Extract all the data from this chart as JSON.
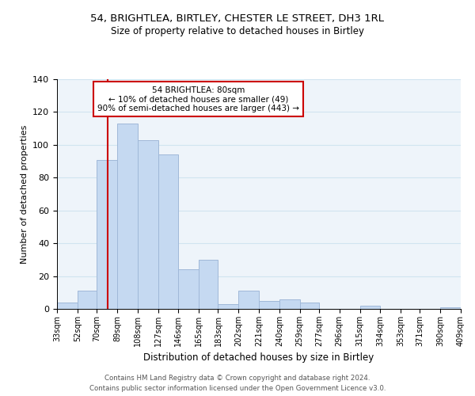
{
  "title_line1": "54, BRIGHTLEA, BIRTLEY, CHESTER LE STREET, DH3 1RL",
  "title_line2": "Size of property relative to detached houses in Birtley",
  "xlabel": "Distribution of detached houses by size in Birtley",
  "ylabel": "Number of detached properties",
  "bar_edges": [
    33,
    52,
    70,
    89,
    108,
    127,
    146,
    165,
    183,
    202,
    221,
    240,
    259,
    277,
    296,
    315,
    334,
    353,
    371,
    390,
    409
  ],
  "bar_heights": [
    4,
    11,
    91,
    113,
    103,
    94,
    24,
    30,
    3,
    11,
    5,
    6,
    4,
    0,
    0,
    2,
    0,
    0,
    0,
    1
  ],
  "bar_color": "#c5d9f1",
  "bar_edge_color": "#a0b8d8",
  "vline_x": 80,
  "vline_color": "#cc0000",
  "ylim": [
    0,
    140
  ],
  "annotation_title": "54 BRIGHTLEA: 80sqm",
  "annotation_line1": "← 10% of detached houses are smaller (49)",
  "annotation_line2": "90% of semi-detached houses are larger (443) →",
  "annotation_box_color": "#ffffff",
  "annotation_border_color": "#cc0000",
  "footer_line1": "Contains HM Land Registry data © Crown copyright and database right 2024.",
  "footer_line2": "Contains public sector information licensed under the Open Government Licence v3.0.",
  "tick_labels": [
    "33sqm",
    "52sqm",
    "70sqm",
    "89sqm",
    "108sqm",
    "127sqm",
    "146sqm",
    "165sqm",
    "183sqm",
    "202sqm",
    "221sqm",
    "240sqm",
    "259sqm",
    "277sqm",
    "296sqm",
    "315sqm",
    "334sqm",
    "353sqm",
    "371sqm",
    "390sqm",
    "409sqm"
  ],
  "yticks": [
    0,
    20,
    40,
    60,
    80,
    100,
    120,
    140
  ],
  "fig_width": 6.0,
  "fig_height": 5.0,
  "dpi": 100
}
